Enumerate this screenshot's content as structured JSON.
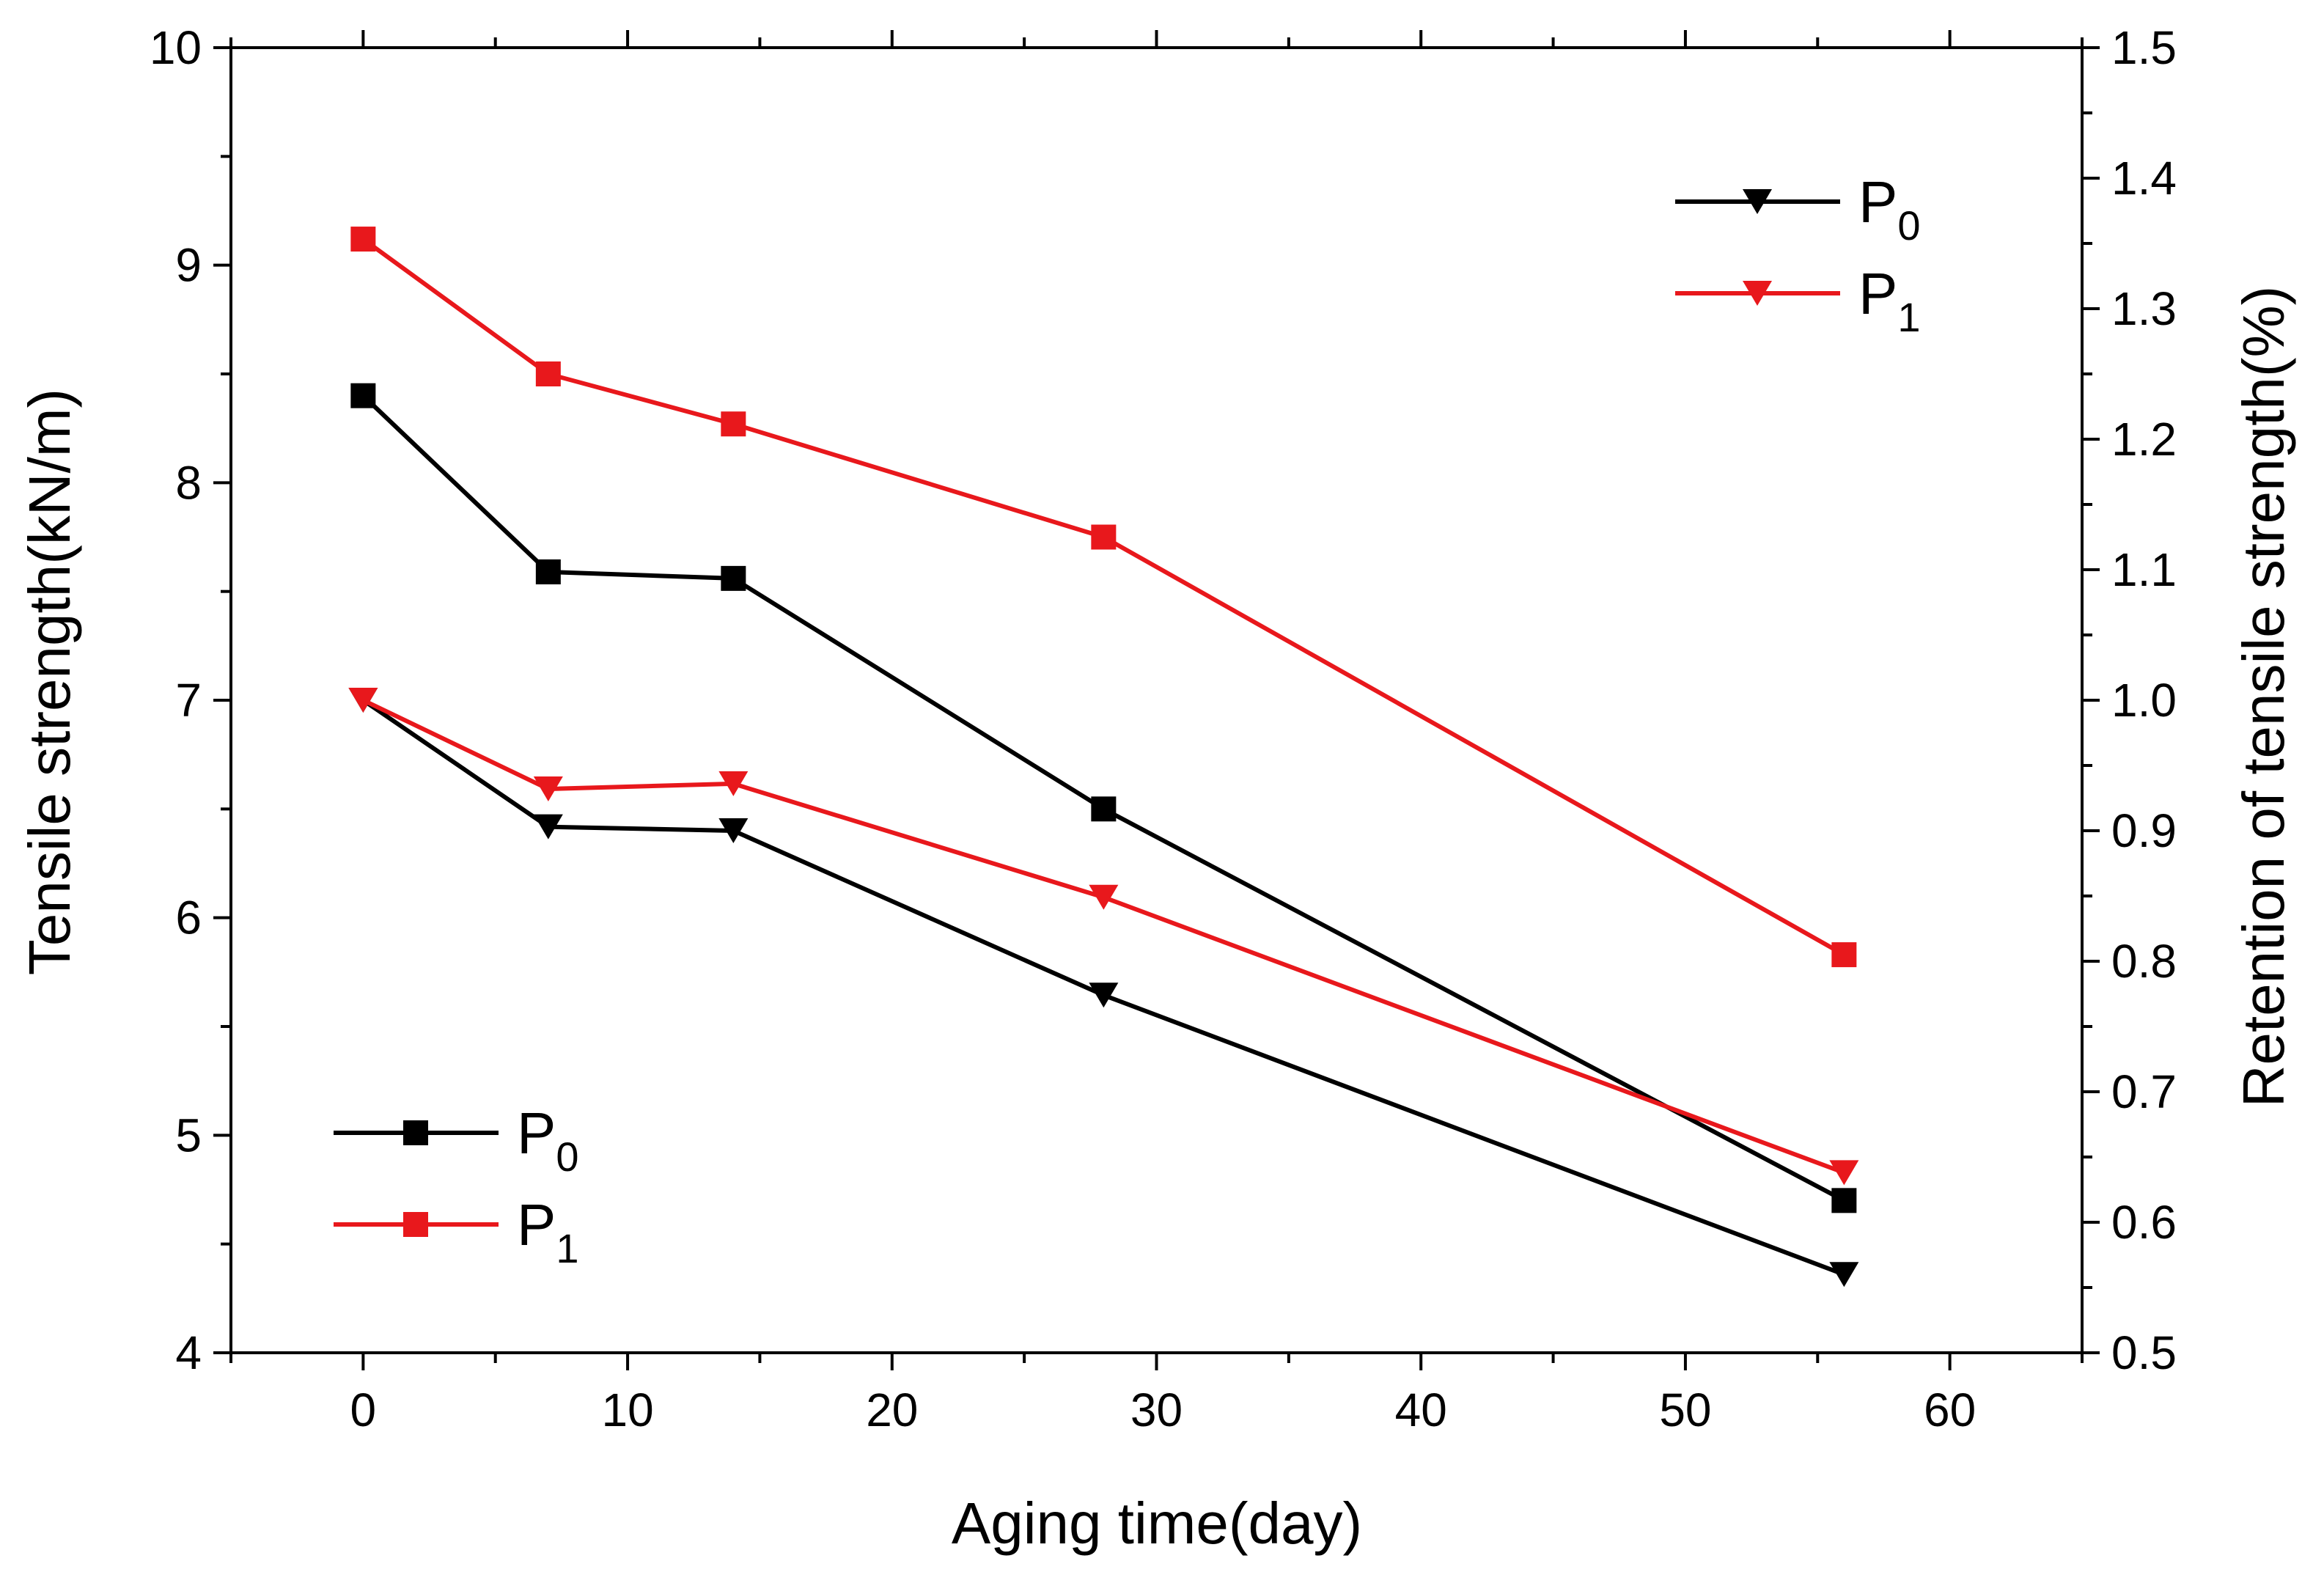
{
  "chart_data": {
    "type": "line",
    "title": "",
    "xlabel": "Aging time(day)",
    "ylabel_left": "Tensile strength(kN/m)",
    "ylabel_right": "Retention of tensile strength(%)",
    "xlim": [
      -5,
      65
    ],
    "ylim_left": [
      4,
      10
    ],
    "ylim_right": [
      0.5,
      1.5
    ],
    "x_ticks": [
      0,
      10,
      20,
      30,
      40,
      50,
      60
    ],
    "y_ticks_left": [
      4,
      5,
      6,
      7,
      8,
      9,
      10
    ],
    "y_ticks_right": [
      "0.5",
      "0.6",
      "0.7",
      "0.8",
      "0.9",
      "1.0",
      "1.1",
      "1.2",
      "1.3",
      "1.4",
      "1.5"
    ],
    "x": [
      0,
      7,
      14,
      28,
      56
    ],
    "series": [
      {
        "name": "P0",
        "legend_main": "P",
        "legend_sub": "0",
        "axis": "left",
        "marker": "square",
        "color": "#000000",
        "values": [
          8.4,
          7.59,
          7.56,
          6.5,
          4.7
        ]
      },
      {
        "name": "P1",
        "legend_main": "P",
        "legend_sub": "1",
        "axis": "left",
        "marker": "square",
        "color": "#e8181c",
        "values": [
          9.12,
          8.5,
          8.27,
          7.75,
          5.83
        ]
      },
      {
        "name": "P0",
        "legend_main": "P",
        "legend_sub": "0",
        "axis": "right",
        "marker": "triangle-down",
        "color": "#000000",
        "values": [
          1.0,
          0.903,
          0.9,
          0.774,
          0.56
        ]
      },
      {
        "name": "P1",
        "legend_main": "P",
        "legend_sub": "1",
        "axis": "right",
        "marker": "triangle-down",
        "color": "#e8181c",
        "values": [
          1.0,
          0.932,
          0.936,
          0.849,
          0.638
        ]
      }
    ],
    "legends": [
      {
        "position": "top-right",
        "series_index": [
          2,
          3
        ]
      },
      {
        "position": "bottom-left",
        "series_index": [
          0,
          1
        ]
      }
    ]
  }
}
